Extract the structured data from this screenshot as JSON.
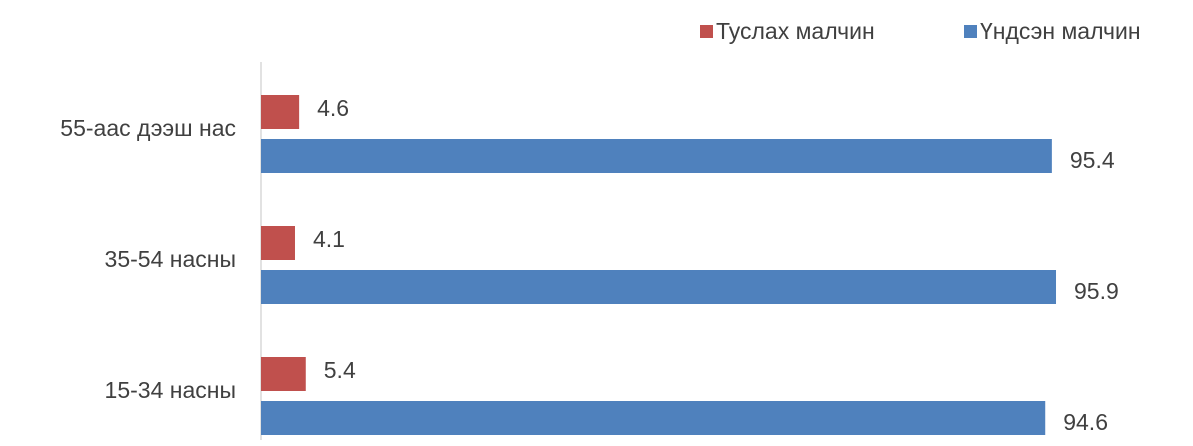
{
  "chart_data": {
    "type": "bar",
    "orientation": "horizontal",
    "categories": [
      "55-аас дээш нас",
      "35-54 насны",
      "15-34 насны"
    ],
    "series": [
      {
        "name": "Туслах малчин",
        "color": "#c0504d",
        "values": [
          4.6,
          4.1,
          5.4
        ]
      },
      {
        "name": "Үндсэн малчин",
        "color": "#4f81bd",
        "values": [
          95.4,
          95.9,
          94.6
        ]
      }
    ],
    "xlim": [
      0,
      100
    ],
    "legend": "top-right"
  }
}
